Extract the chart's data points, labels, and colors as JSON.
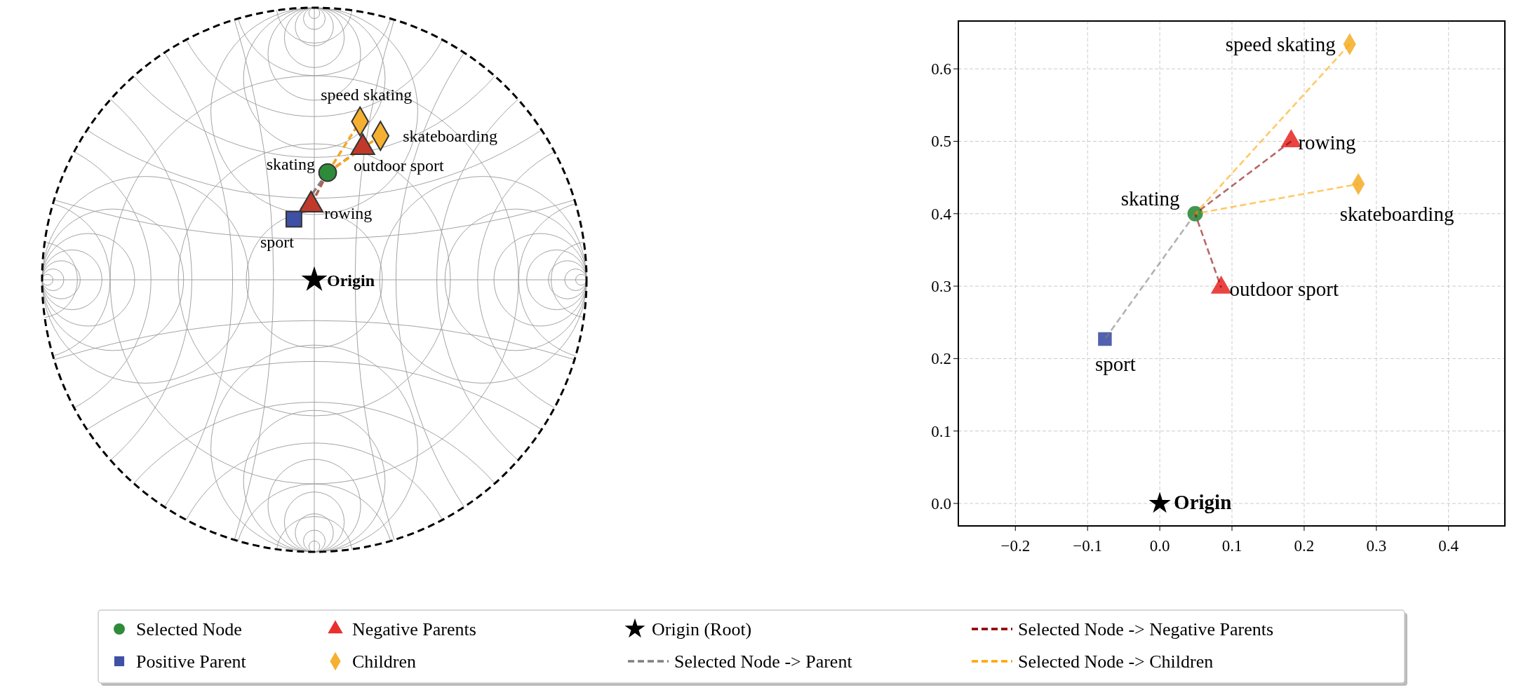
{
  "chart_data": [
    {
      "type": "other",
      "annotations": [
        "speed skating",
        "skateboarding",
        "skating",
        "outdoor sport",
        "rowing",
        "sport",
        "Origin"
      ]
    },
    {
      "type": "scatter",
      "xlim": [
        -0.279,
        0.478
      ],
      "ylim": [
        -0.031,
        0.666
      ],
      "grid": true,
      "legend": "bottom",
      "xticks": [
        {
          "value": -0.2,
          "label": "−0.2"
        },
        {
          "value": -0.1,
          "label": "−0.1"
        },
        {
          "value": 0,
          "label": "0.0"
        },
        {
          "value": 0.1,
          "label": "0.1"
        },
        {
          "value": 0.2,
          "label": "0.2"
        },
        {
          "value": 0.3,
          "label": "0.3"
        },
        {
          "value": 0.4,
          "label": "0.4"
        }
      ],
      "yticks": [
        {
          "value": 0,
          "label": "0.0"
        },
        {
          "value": 0.1,
          "label": "0.1"
        },
        {
          "value": 0.2,
          "label": "0.2"
        },
        {
          "value": 0.3,
          "label": "0.3"
        },
        {
          "value": 0.4,
          "label": "0.4"
        },
        {
          "value": 0.5,
          "label": "0.5"
        },
        {
          "value": 0.6,
          "label": "0.6"
        }
      ],
      "series": [
        {
          "name": "Selected Node -> Parent",
          "type": "line",
          "color": "#808080",
          "line_style": "dashed",
          "x": [
            0.049,
            -0.076
          ],
          "values": [
            0.4,
            0.227
          ]
        },
        {
          "name": "Selected Node -> Negative Parents",
          "type": "line",
          "color": "#8b0000",
          "line_style": "dashed",
          "x": [
            0.182,
            0.049,
            0.085
          ],
          "values": [
            0.5,
            0.4,
            0.298
          ]
        },
        {
          "name": "Selected Node -> Children",
          "type": "line",
          "color": "#ffa500",
          "line_style": "dashed",
          "x": [
            0.263,
            0.049,
            0.275
          ],
          "values": [
            0.634,
            0.4,
            0.441
          ]
        },
        {
          "name": "Selected Node",
          "color": "#2e8b3a",
          "marker": "circle",
          "x": [
            0.049
          ],
          "values": [
            0.4
          ]
        },
        {
          "name": "Positive Parent",
          "color": "#3f51a5",
          "marker": "square",
          "x": [
            -0.076
          ],
          "values": [
            0.227
          ]
        },
        {
          "name": "Negative Parents",
          "color": "#e8302e",
          "marker": "triangle",
          "x": [
            0.182,
            0.085
          ],
          "values": [
            0.5,
            0.298
          ]
        },
        {
          "name": "Children",
          "color": "#f5b031",
          "marker": "diamond",
          "x": [
            0.263,
            0.275
          ],
          "values": [
            0.634,
            0.441
          ]
        },
        {
          "name": "Origin (Root)",
          "color": "#000000",
          "marker": "star",
          "x": [
            0
          ],
          "values": [
            0
          ]
        }
      ],
      "annotations": [
        {
          "text": "speed skating",
          "x": 0.263,
          "y": 0.634
        },
        {
          "text": "skateboarding",
          "x": 0.275,
          "y": 0.441
        },
        {
          "text": "skating",
          "x": 0.049,
          "y": 0.4
        },
        {
          "text": "outdoor sport",
          "x": 0.085,
          "y": 0.298
        },
        {
          "text": "rowing",
          "x": 0.182,
          "y": 0.5
        },
        {
          "text": "sport",
          "x": -0.076,
          "y": 0.227
        },
        {
          "text": "Origin",
          "x": 0,
          "y": 0
        }
      ]
    }
  ]
}
